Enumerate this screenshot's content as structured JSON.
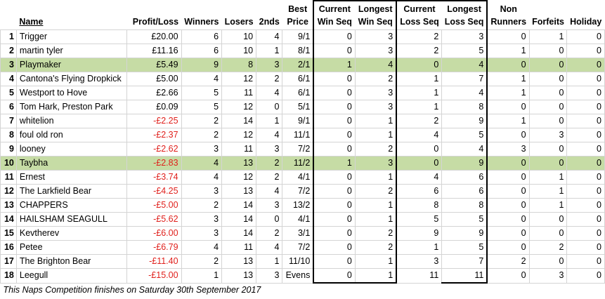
{
  "headers": {
    "rank": "",
    "name": "Name",
    "profit": "Profit/Loss",
    "winners": "Winners",
    "losers": "Losers",
    "seconds": "2nds",
    "best_price_1": "Best",
    "best_price_2": "Price",
    "cur_win_1": "Current",
    "cur_win_2": "Win Seq",
    "long_win_1": "Longest",
    "long_win_2": "Win Seq",
    "cur_loss_1": "Current",
    "cur_loss_2": "Loss Seq",
    "long_loss_1": "Longest",
    "long_loss_2": "Loss Seq",
    "non_runners_1": "Non",
    "non_runners_2": "Runners",
    "forfeits": "Forfeits",
    "holiday": "Holiday"
  },
  "rows": [
    {
      "rank": "1",
      "name": "Trigger",
      "profit": "£20.00",
      "neg": false,
      "winners": "6",
      "losers": "10",
      "seconds": "4",
      "best_price": "9/1",
      "cur_win": "0",
      "long_win": "3",
      "cur_loss": "2",
      "long_loss": "3",
      "non_runners": "0",
      "forfeits": "1",
      "holiday": "0",
      "highlight": false
    },
    {
      "rank": "2",
      "name": "martin tyler",
      "profit": "£11.16",
      "neg": false,
      "winners": "6",
      "losers": "10",
      "seconds": "1",
      "best_price": "8/1",
      "cur_win": "0",
      "long_win": "3",
      "cur_loss": "2",
      "long_loss": "5",
      "non_runners": "1",
      "forfeits": "0",
      "holiday": "0",
      "highlight": false
    },
    {
      "rank": "3",
      "name": "Playmaker",
      "profit": "£5.49",
      "neg": false,
      "winners": "9",
      "losers": "8",
      "seconds": "3",
      "best_price": "2/1",
      "cur_win": "1",
      "long_win": "4",
      "cur_loss": "0",
      "long_loss": "4",
      "non_runners": "0",
      "forfeits": "0",
      "holiday": "0",
      "highlight": true
    },
    {
      "rank": "4",
      "name": "Cantona's Flying Dropkick",
      "profit": "£5.00",
      "neg": false,
      "winners": "4",
      "losers": "12",
      "seconds": "2",
      "best_price": "6/1",
      "cur_win": "0",
      "long_win": "2",
      "cur_loss": "1",
      "long_loss": "7",
      "non_runners": "1",
      "forfeits": "0",
      "holiday": "0",
      "highlight": false
    },
    {
      "rank": "5",
      "name": "Westport to Hove",
      "profit": "£2.66",
      "neg": false,
      "winners": "5",
      "losers": "11",
      "seconds": "4",
      "best_price": "6/1",
      "cur_win": "0",
      "long_win": "3",
      "cur_loss": "1",
      "long_loss": "4",
      "non_runners": "1",
      "forfeits": "0",
      "holiday": "0",
      "highlight": false
    },
    {
      "rank": "6",
      "name": "Tom Hark, Preston Park",
      "profit": "£0.09",
      "neg": false,
      "winners": "5",
      "losers": "12",
      "seconds": "0",
      "best_price": "5/1",
      "cur_win": "0",
      "long_win": "3",
      "cur_loss": "1",
      "long_loss": "8",
      "non_runners": "0",
      "forfeits": "0",
      "holiday": "0",
      "highlight": false
    },
    {
      "rank": "7",
      "name": "whitelion",
      "profit": "-£2.25",
      "neg": true,
      "winners": "2",
      "losers": "14",
      "seconds": "1",
      "best_price": "9/1",
      "cur_win": "0",
      "long_win": "1",
      "cur_loss": "2",
      "long_loss": "9",
      "non_runners": "1",
      "forfeits": "0",
      "holiday": "0",
      "highlight": false
    },
    {
      "rank": "8",
      "name": "foul old ron",
      "profit": "-£2.37",
      "neg": true,
      "winners": "2",
      "losers": "12",
      "seconds": "4",
      "best_price": "11/1",
      "cur_win": "0",
      "long_win": "1",
      "cur_loss": "4",
      "long_loss": "5",
      "non_runners": "0",
      "forfeits": "3",
      "holiday": "0",
      "highlight": false
    },
    {
      "rank": "9",
      "name": "looney",
      "profit": "-£2.62",
      "neg": true,
      "winners": "3",
      "losers": "11",
      "seconds": "3",
      "best_price": "7/2",
      "cur_win": "0",
      "long_win": "2",
      "cur_loss": "0",
      "long_loss": "4",
      "non_runners": "3",
      "forfeits": "0",
      "holiday": "0",
      "highlight": false
    },
    {
      "rank": "10",
      "name": "Taybha",
      "profit": "-£2.83",
      "neg": true,
      "winners": "4",
      "losers": "13",
      "seconds": "2",
      "best_price": "11/2",
      "cur_win": "1",
      "long_win": "3",
      "cur_loss": "0",
      "long_loss": "9",
      "non_runners": "0",
      "forfeits": "0",
      "holiday": "0",
      "highlight": true
    },
    {
      "rank": "11",
      "name": "Ernest",
      "profit": "-£3.74",
      "neg": true,
      "winners": "4",
      "losers": "12",
      "seconds": "2",
      "best_price": "4/1",
      "cur_win": "0",
      "long_win": "1",
      "cur_loss": "4",
      "long_loss": "6",
      "non_runners": "0",
      "forfeits": "1",
      "holiday": "0",
      "highlight": false
    },
    {
      "rank": "12",
      "name": "The Larkfield Bear",
      "profit": "-£4.25",
      "neg": true,
      "winners": "3",
      "losers": "13",
      "seconds": "4",
      "best_price": "7/2",
      "cur_win": "0",
      "long_win": "2",
      "cur_loss": "6",
      "long_loss": "6",
      "non_runners": "0",
      "forfeits": "1",
      "holiday": "0",
      "highlight": false
    },
    {
      "rank": "13",
      "name": "CHAPPERS",
      "profit": "-£5.00",
      "neg": true,
      "winners": "2",
      "losers": "14",
      "seconds": "3",
      "best_price": "13/2",
      "cur_win": "0",
      "long_win": "1",
      "cur_loss": "8",
      "long_loss": "8",
      "non_runners": "0",
      "forfeits": "1",
      "holiday": "0",
      "highlight": false
    },
    {
      "rank": "14",
      "name": "HAILSHAM SEAGULL",
      "profit": "-£5.62",
      "neg": true,
      "winners": "3",
      "losers": "14",
      "seconds": "0",
      "best_price": "4/1",
      "cur_win": "0",
      "long_win": "1",
      "cur_loss": "5",
      "long_loss": "5",
      "non_runners": "0",
      "forfeits": "0",
      "holiday": "0",
      "highlight": false
    },
    {
      "rank": "15",
      "name": "Kevtherev",
      "profit": "-£6.00",
      "neg": true,
      "winners": "3",
      "losers": "14",
      "seconds": "2",
      "best_price": "3/1",
      "cur_win": "0",
      "long_win": "2",
      "cur_loss": "9",
      "long_loss": "9",
      "non_runners": "0",
      "forfeits": "0",
      "holiday": "0",
      "highlight": false
    },
    {
      "rank": "16",
      "name": "Petee",
      "profit": "-£6.79",
      "neg": true,
      "winners": "4",
      "losers": "11",
      "seconds": "4",
      "best_price": "7/2",
      "cur_win": "0",
      "long_win": "2",
      "cur_loss": "1",
      "long_loss": "5",
      "non_runners": "0",
      "forfeits": "2",
      "holiday": "0",
      "highlight": false
    },
    {
      "rank": "17",
      "name": "The Brighton Bear",
      "profit": "-£11.40",
      "neg": true,
      "winners": "2",
      "losers": "13",
      "seconds": "1",
      "best_price": "11/10",
      "cur_win": "0",
      "long_win": "1",
      "cur_loss": "3",
      "long_loss": "7",
      "non_runners": "2",
      "forfeits": "0",
      "holiday": "0",
      "highlight": false
    },
    {
      "rank": "18",
      "name": "Leegull",
      "profit": "-£15.00",
      "neg": true,
      "winners": "1",
      "losers": "13",
      "seconds": "3",
      "best_price": "Evens",
      "cur_win": "0",
      "long_win": "1",
      "cur_loss": "11",
      "long_loss": "11",
      "non_runners": "0",
      "forfeits": "3",
      "holiday": "0",
      "highlight": false
    }
  ],
  "footer_note": "This Naps Competition finishes on Saturday 30th September 2017",
  "colors": {
    "highlight_row": "#c6dca5",
    "negative_text": "#e0201c",
    "gridline": "#d4d4d4"
  }
}
